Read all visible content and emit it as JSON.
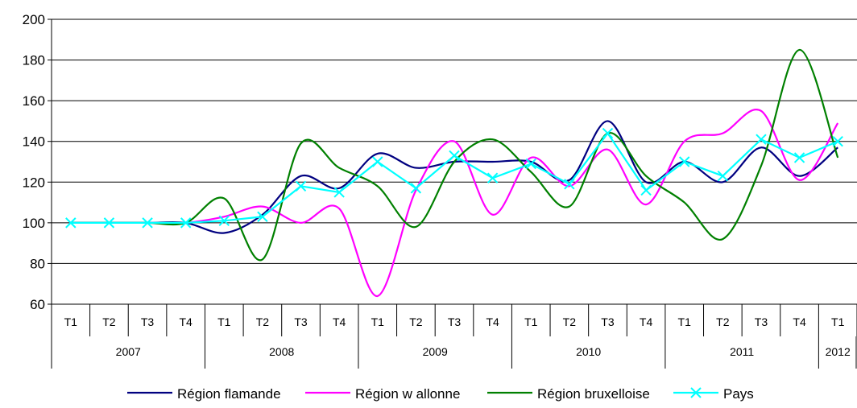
{
  "chart_data": {
    "type": "line",
    "title": "",
    "xlabel": "",
    "ylabel": "",
    "ylim": [
      60,
      200
    ],
    "yticks": [
      60,
      80,
      100,
      120,
      140,
      160,
      180,
      200
    ],
    "grid": "horizontal",
    "legend_position": "bottom",
    "quarters": [
      "T1",
      "T2",
      "T3",
      "T4",
      "T1",
      "T2",
      "T3",
      "T4",
      "T1",
      "T2",
      "T3",
      "T4",
      "T1",
      "T2",
      "T3",
      "T4",
      "T1",
      "T2",
      "T3",
      "T4",
      "T1"
    ],
    "years": [
      {
        "label": "2007",
        "quarters": 4
      },
      {
        "label": "2008",
        "quarters": 4
      },
      {
        "label": "2009",
        "quarters": 4
      },
      {
        "label": "2010",
        "quarters": 4
      },
      {
        "label": "2011",
        "quarters": 4
      },
      {
        "label": "2012",
        "quarters": 1
      }
    ],
    "series": [
      {
        "name": "Région flamande",
        "color": "#000080",
        "marker": "none",
        "values": [
          100,
          100,
          100,
          100,
          95,
          104,
          123,
          117,
          134,
          127,
          130,
          130,
          130,
          121,
          150,
          120,
          130,
          120,
          137,
          123,
          137
        ]
      },
      {
        "name": "Région w allonne",
        "color": "#ff00ff",
        "marker": "none",
        "values": [
          100,
          100,
          100,
          100,
          103,
          108,
          100,
          107,
          64,
          116,
          140,
          104,
          132,
          118,
          136,
          109,
          140,
          144,
          155,
          121,
          149
        ]
      },
      {
        "name": "Région bruxelloise",
        "color": "#008000",
        "marker": "none",
        "values": [
          100,
          100,
          100,
          100,
          112,
          82,
          139,
          127,
          118,
          98,
          130,
          141,
          125,
          108,
          144,
          123,
          110,
          92,
          128,
          185,
          132
        ]
      },
      {
        "name": "Pays",
        "color": "#00ffff",
        "marker": "x",
        "values": [
          100,
          100,
          100,
          100,
          101,
          103,
          118,
          115,
          130,
          117,
          133,
          122,
          129,
          119,
          144,
          116,
          130,
          123,
          141,
          132,
          140
        ]
      }
    ]
  }
}
